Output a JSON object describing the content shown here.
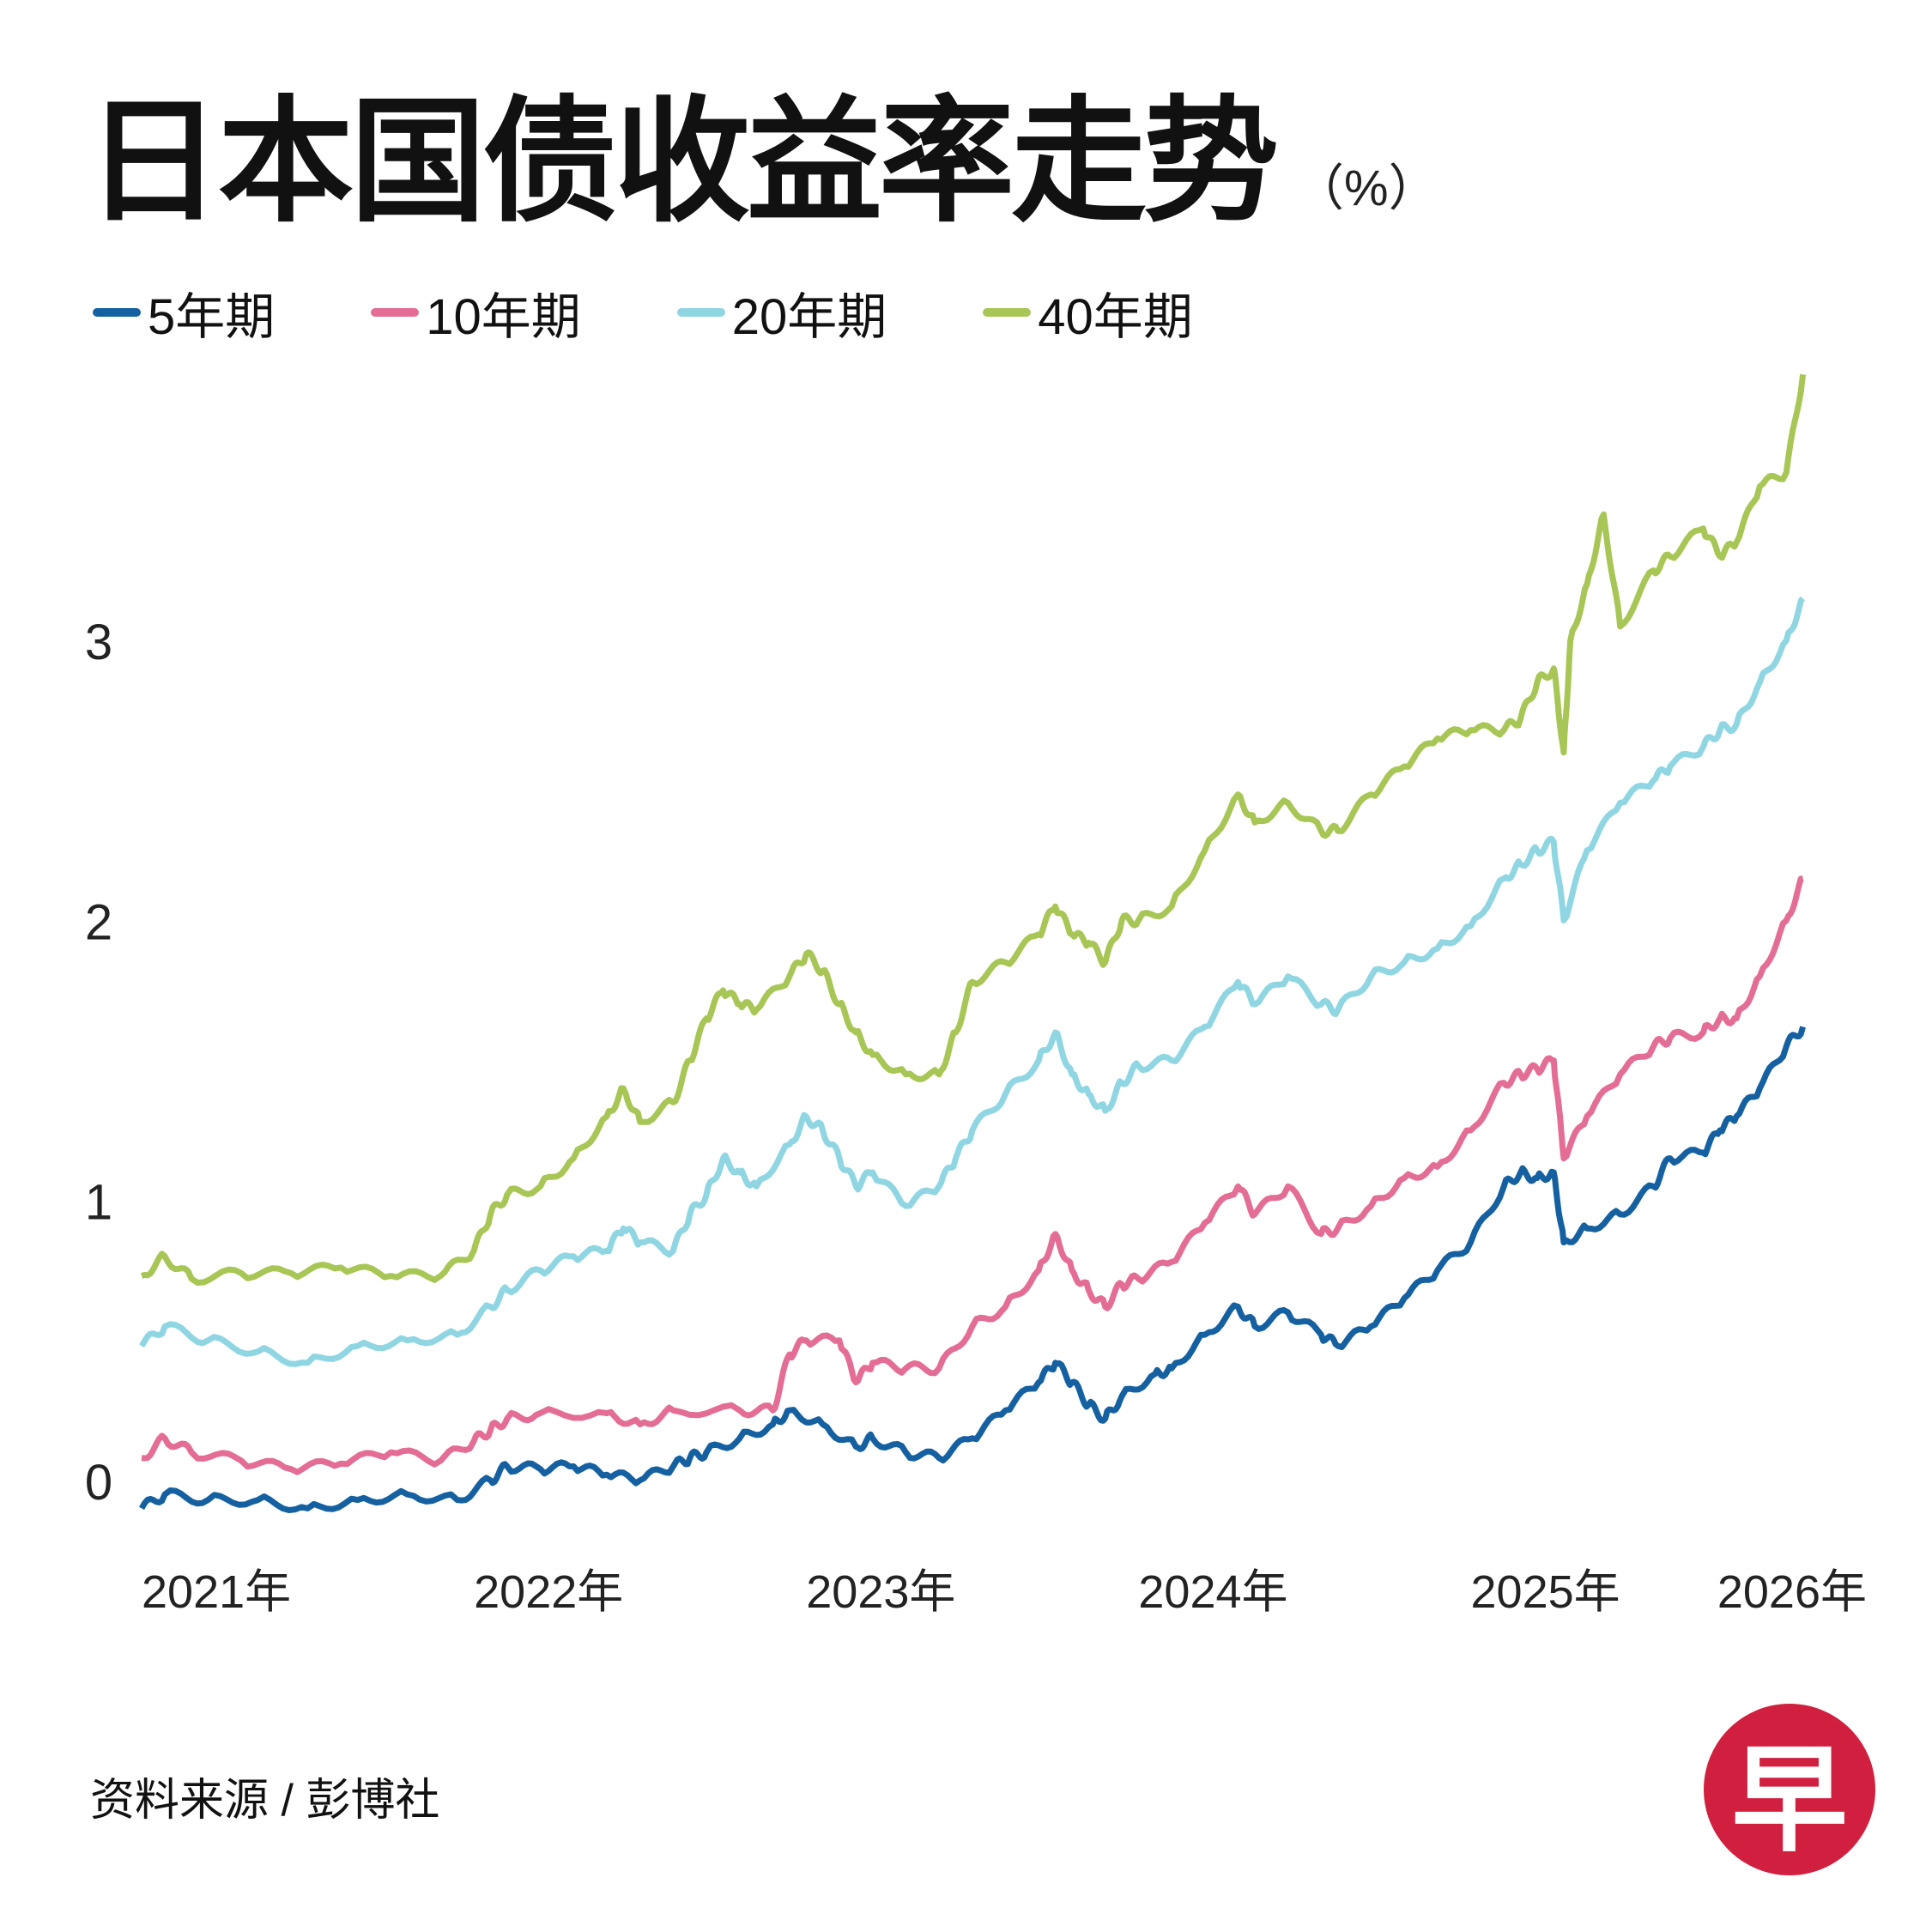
{
  "title": "日本国债收益率走势",
  "unit": "（%）",
  "source": "资料来源 / 彭博社",
  "logo_text": "早",
  "chart_data": {
    "type": "line",
    "title": "日本国债收益率走势",
    "ylabel": "%",
    "x_ticks": [
      "2021年",
      "2022年",
      "2023年",
      "2024年",
      "2025年",
      "2026年"
    ],
    "y_ticks": [
      0,
      1,
      2,
      3
    ],
    "ylim": [
      -0.2,
      4.0
    ],
    "xlim": [
      2021.0,
      2026.05
    ],
    "grid": false,
    "legend_position": "top-left",
    "series": [
      {
        "name": "5年期",
        "color": "#1560a0",
        "points": [
          [
            2021.0,
            -0.1
          ],
          [
            2021.07,
            -0.05
          ],
          [
            2021.2,
            -0.07
          ],
          [
            2021.35,
            -0.07
          ],
          [
            2021.5,
            -0.1
          ],
          [
            2021.65,
            -0.07
          ],
          [
            2021.8,
            -0.05
          ],
          [
            2021.95,
            -0.07
          ],
          [
            2022.05,
            0.0
          ],
          [
            2022.1,
            0.05
          ],
          [
            2022.2,
            0.04
          ],
          [
            2022.3,
            0.05
          ],
          [
            2022.4,
            0.02
          ],
          [
            2022.5,
            0.0
          ],
          [
            2022.6,
            0.05
          ],
          [
            2022.65,
            0.08
          ],
          [
            2022.7,
            0.1
          ],
          [
            2022.8,
            0.15
          ],
          [
            2022.9,
            0.2
          ],
          [
            2022.95,
            0.25
          ],
          [
            2023.05,
            0.2
          ],
          [
            2023.15,
            0.12
          ],
          [
            2023.2,
            0.15
          ],
          [
            2023.3,
            0.1
          ],
          [
            2023.4,
            0.08
          ],
          [
            2023.5,
            0.15
          ],
          [
            2023.6,
            0.25
          ],
          [
            2023.7,
            0.35
          ],
          [
            2023.75,
            0.42
          ],
          [
            2023.8,
            0.35
          ],
          [
            2023.85,
            0.27
          ],
          [
            2023.9,
            0.22
          ],
          [
            2023.95,
            0.3
          ],
          [
            2024.05,
            0.38
          ],
          [
            2024.1,
            0.4
          ],
          [
            2024.2,
            0.52
          ],
          [
            2024.3,
            0.62
          ],
          [
            2024.35,
            0.55
          ],
          [
            2024.45,
            0.6
          ],
          [
            2024.55,
            0.52
          ],
          [
            2024.6,
            0.48
          ],
          [
            2024.7,
            0.55
          ],
          [
            2024.8,
            0.65
          ],
          [
            2024.9,
            0.75
          ],
          [
            2025.0,
            0.85
          ],
          [
            2025.1,
            1.05
          ],
          [
            2025.15,
            1.1
          ],
          [
            2025.2,
            1.08
          ],
          [
            2025.25,
            1.1
          ],
          [
            2025.28,
            0.85
          ],
          [
            2025.35,
            0.9
          ],
          [
            2025.45,
            0.95
          ],
          [
            2025.55,
            1.05
          ],
          [
            2025.6,
            1.15
          ],
          [
            2025.7,
            1.17
          ],
          [
            2025.75,
            1.25
          ],
          [
            2025.8,
            1.3
          ],
          [
            2025.87,
            1.4
          ],
          [
            2025.95,
            1.55
          ],
          [
            2026.0,
            1.62
          ]
        ]
      },
      {
        "name": "10年期",
        "color": "#e46d95",
        "points": [
          [
            2021.0,
            0.08
          ],
          [
            2021.07,
            0.15
          ],
          [
            2021.15,
            0.1
          ],
          [
            2021.3,
            0.07
          ],
          [
            2021.45,
            0.04
          ],
          [
            2021.6,
            0.06
          ],
          [
            2021.75,
            0.1
          ],
          [
            2021.9,
            0.07
          ],
          [
            2022.0,
            0.14
          ],
          [
            2022.05,
            0.18
          ],
          [
            2022.1,
            0.22
          ],
          [
            2022.2,
            0.24
          ],
          [
            2022.4,
            0.24
          ],
          [
            2022.5,
            0.2
          ],
          [
            2022.6,
            0.25
          ],
          [
            2022.8,
            0.25
          ],
          [
            2022.9,
            0.25
          ],
          [
            2022.95,
            0.45
          ],
          [
            2023.0,
            0.5
          ],
          [
            2023.1,
            0.5
          ],
          [
            2023.15,
            0.35
          ],
          [
            2023.2,
            0.42
          ],
          [
            2023.3,
            0.4
          ],
          [
            2023.4,
            0.4
          ],
          [
            2023.5,
            0.55
          ],
          [
            2023.6,
            0.62
          ],
          [
            2023.7,
            0.75
          ],
          [
            2023.75,
            0.88
          ],
          [
            2023.8,
            0.75
          ],
          [
            2023.85,
            0.68
          ],
          [
            2023.9,
            0.62
          ],
          [
            2023.95,
            0.7
          ],
          [
            2024.0,
            0.72
          ],
          [
            2024.1,
            0.78
          ],
          [
            2024.2,
            0.92
          ],
          [
            2024.3,
            1.05
          ],
          [
            2024.35,
            0.95
          ],
          [
            2024.45,
            1.05
          ],
          [
            2024.55,
            0.88
          ],
          [
            2024.6,
            0.9
          ],
          [
            2024.7,
            0.98
          ],
          [
            2024.8,
            1.08
          ],
          [
            2024.9,
            1.12
          ],
          [
            2025.0,
            1.25
          ],
          [
            2025.1,
            1.42
          ],
          [
            2025.15,
            1.45
          ],
          [
            2025.2,
            1.47
          ],
          [
            2025.25,
            1.5
          ],
          [
            2025.28,
            1.15
          ],
          [
            2025.35,
            1.3
          ],
          [
            2025.45,
            1.45
          ],
          [
            2025.55,
            1.55
          ],
          [
            2025.6,
            1.58
          ],
          [
            2025.7,
            1.6
          ],
          [
            2025.75,
            1.65
          ],
          [
            2025.8,
            1.65
          ],
          [
            2025.87,
            1.8
          ],
          [
            2025.95,
            2.0
          ],
          [
            2026.0,
            2.15
          ]
        ]
      },
      {
        "name": "20年期",
        "color": "#8fd6e2",
        "points": [
          [
            2021.0,
            0.48
          ],
          [
            2021.07,
            0.55
          ],
          [
            2021.2,
            0.5
          ],
          [
            2021.35,
            0.46
          ],
          [
            2021.5,
            0.42
          ],
          [
            2021.65,
            0.48
          ],
          [
            2021.8,
            0.5
          ],
          [
            2021.95,
            0.52
          ],
          [
            2022.05,
            0.62
          ],
          [
            2022.1,
            0.68
          ],
          [
            2022.2,
            0.75
          ],
          [
            2022.3,
            0.8
          ],
          [
            2022.4,
            0.82
          ],
          [
            2022.45,
            0.9
          ],
          [
            2022.5,
            0.85
          ],
          [
            2022.6,
            0.82
          ],
          [
            2022.65,
            0.95
          ],
          [
            2022.7,
            1.02
          ],
          [
            2022.75,
            1.15
          ],
          [
            2022.8,
            1.1
          ],
          [
            2022.85,
            1.05
          ],
          [
            2022.95,
            1.2
          ],
          [
            2023.0,
            1.3
          ],
          [
            2023.05,
            1.25
          ],
          [
            2023.1,
            1.15
          ],
          [
            2023.15,
            1.05
          ],
          [
            2023.2,
            1.1
          ],
          [
            2023.3,
            0.98
          ],
          [
            2023.4,
            1.05
          ],
          [
            2023.45,
            1.15
          ],
          [
            2023.5,
            1.25
          ],
          [
            2023.6,
            1.38
          ],
          [
            2023.7,
            1.5
          ],
          [
            2023.75,
            1.6
          ],
          [
            2023.8,
            1.45
          ],
          [
            2023.85,
            1.38
          ],
          [
            2023.9,
            1.32
          ],
          [
            2023.95,
            1.42
          ],
          [
            2024.0,
            1.48
          ],
          [
            2024.1,
            1.5
          ],
          [
            2024.2,
            1.62
          ],
          [
            2024.3,
            1.78
          ],
          [
            2024.35,
            1.7
          ],
          [
            2024.45,
            1.8
          ],
          [
            2024.55,
            1.7
          ],
          [
            2024.6,
            1.68
          ],
          [
            2024.7,
            1.8
          ],
          [
            2024.8,
            1.85
          ],
          [
            2024.9,
            1.9
          ],
          [
            2025.0,
            1.98
          ],
          [
            2025.1,
            2.15
          ],
          [
            2025.15,
            2.2
          ],
          [
            2025.2,
            2.25
          ],
          [
            2025.25,
            2.28
          ],
          [
            2025.28,
            2.0
          ],
          [
            2025.35,
            2.25
          ],
          [
            2025.45,
            2.42
          ],
          [
            2025.55,
            2.5
          ],
          [
            2025.6,
            2.55
          ],
          [
            2025.7,
            2.62
          ],
          [
            2025.75,
            2.68
          ],
          [
            2025.8,
            2.7
          ],
          [
            2025.87,
            2.85
          ],
          [
            2025.95,
            3.0
          ],
          [
            2026.0,
            3.15
          ]
        ]
      },
      {
        "name": "40年期",
        "color": "#a7c655",
        "points": [
          [
            2021.0,
            0.73
          ],
          [
            2021.07,
            0.8
          ],
          [
            2021.15,
            0.72
          ],
          [
            2021.3,
            0.74
          ],
          [
            2021.45,
            0.74
          ],
          [
            2021.6,
            0.76
          ],
          [
            2021.75,
            0.73
          ],
          [
            2021.9,
            0.73
          ],
          [
            2022.0,
            0.82
          ],
          [
            2022.05,
            0.95
          ],
          [
            2022.1,
            1.02
          ],
          [
            2022.2,
            1.05
          ],
          [
            2022.3,
            1.15
          ],
          [
            2022.4,
            1.3
          ],
          [
            2022.45,
            1.4
          ],
          [
            2022.5,
            1.28
          ],
          [
            2022.6,
            1.35
          ],
          [
            2022.65,
            1.5
          ],
          [
            2022.7,
            1.65
          ],
          [
            2022.75,
            1.75
          ],
          [
            2022.8,
            1.7
          ],
          [
            2022.85,
            1.68
          ],
          [
            2022.95,
            1.8
          ],
          [
            2023.0,
            1.88
          ],
          [
            2023.05,
            1.82
          ],
          [
            2023.1,
            1.7
          ],
          [
            2023.15,
            1.6
          ],
          [
            2023.2,
            1.52
          ],
          [
            2023.3,
            1.45
          ],
          [
            2023.4,
            1.45
          ],
          [
            2023.45,
            1.6
          ],
          [
            2023.5,
            1.78
          ],
          [
            2023.6,
            1.85
          ],
          [
            2023.7,
            1.95
          ],
          [
            2023.75,
            2.05
          ],
          [
            2023.8,
            1.95
          ],
          [
            2023.85,
            1.92
          ],
          [
            2023.9,
            1.85
          ],
          [
            2023.95,
            2.0
          ],
          [
            2024.0,
            2.0
          ],
          [
            2024.1,
            2.05
          ],
          [
            2024.2,
            2.25
          ],
          [
            2024.3,
            2.45
          ],
          [
            2024.35,
            2.35
          ],
          [
            2024.45,
            2.42
          ],
          [
            2024.55,
            2.32
          ],
          [
            2024.6,
            2.32
          ],
          [
            2024.7,
            2.45
          ],
          [
            2024.8,
            2.55
          ],
          [
            2024.9,
            2.65
          ],
          [
            2025.0,
            2.68
          ],
          [
            2025.1,
            2.68
          ],
          [
            2025.15,
            2.72
          ],
          [
            2025.2,
            2.85
          ],
          [
            2025.25,
            2.9
          ],
          [
            2025.28,
            2.6
          ],
          [
            2025.3,
            3.0
          ],
          [
            2025.35,
            3.2
          ],
          [
            2025.4,
            3.45
          ],
          [
            2025.45,
            3.05
          ],
          [
            2025.55,
            3.25
          ],
          [
            2025.6,
            3.3
          ],
          [
            2025.7,
            3.4
          ],
          [
            2025.75,
            3.3
          ],
          [
            2025.8,
            3.35
          ],
          [
            2025.87,
            3.55
          ],
          [
            2025.95,
            3.6
          ],
          [
            2026.0,
            3.95
          ]
        ]
      }
    ]
  }
}
